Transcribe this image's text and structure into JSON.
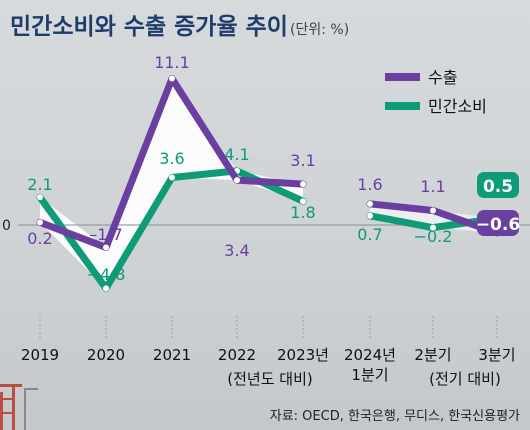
{
  "title": "민간소비와 수출 증가율 추이",
  "unit": "(단위: %)",
  "source": "자료: OECD, 한국은행, 무디스, 한국신용평가",
  "colors": {
    "export": "#6b3fa0",
    "consumption": "#0d9b78",
    "title": "#1d3b6b"
  },
  "chart_data": {
    "type": "line",
    "title": "민간소비와 수출 증가율 추이",
    "unit": "(단위: %)",
    "x": [
      "2019",
      "2020",
      "2021",
      "2022",
      "2023년",
      "2024년 1분기",
      "2분기",
      "3분기"
    ],
    "x_notes": [
      "(전년도 대비)",
      "(전기 대비)"
    ],
    "ylim": [
      -6,
      12
    ],
    "zero_line_label": "0",
    "grid": false,
    "legend": "top-right",
    "series": [
      {
        "name": "수출",
        "key": "export",
        "values": [
          0.2,
          -1.7,
          11.1,
          3.4,
          3.1,
          1.6,
          1.1,
          -0.6
        ],
        "labels": [
          "0.2",
          "–1.7",
          "11.1",
          "3.4",
          "3.1",
          "1.6",
          "1.1",
          "−0.6"
        ]
      },
      {
        "name": "민간소비",
        "key": "consumption",
        "values": [
          2.1,
          -4.8,
          3.6,
          4.1,
          1.8,
          0.7,
          -0.2,
          0.5
        ],
        "labels": [
          "2.1",
          "−4.8",
          "3.6",
          "4.1",
          "1.8",
          "0.7",
          "−0.2",
          "0.5"
        ]
      }
    ]
  }
}
